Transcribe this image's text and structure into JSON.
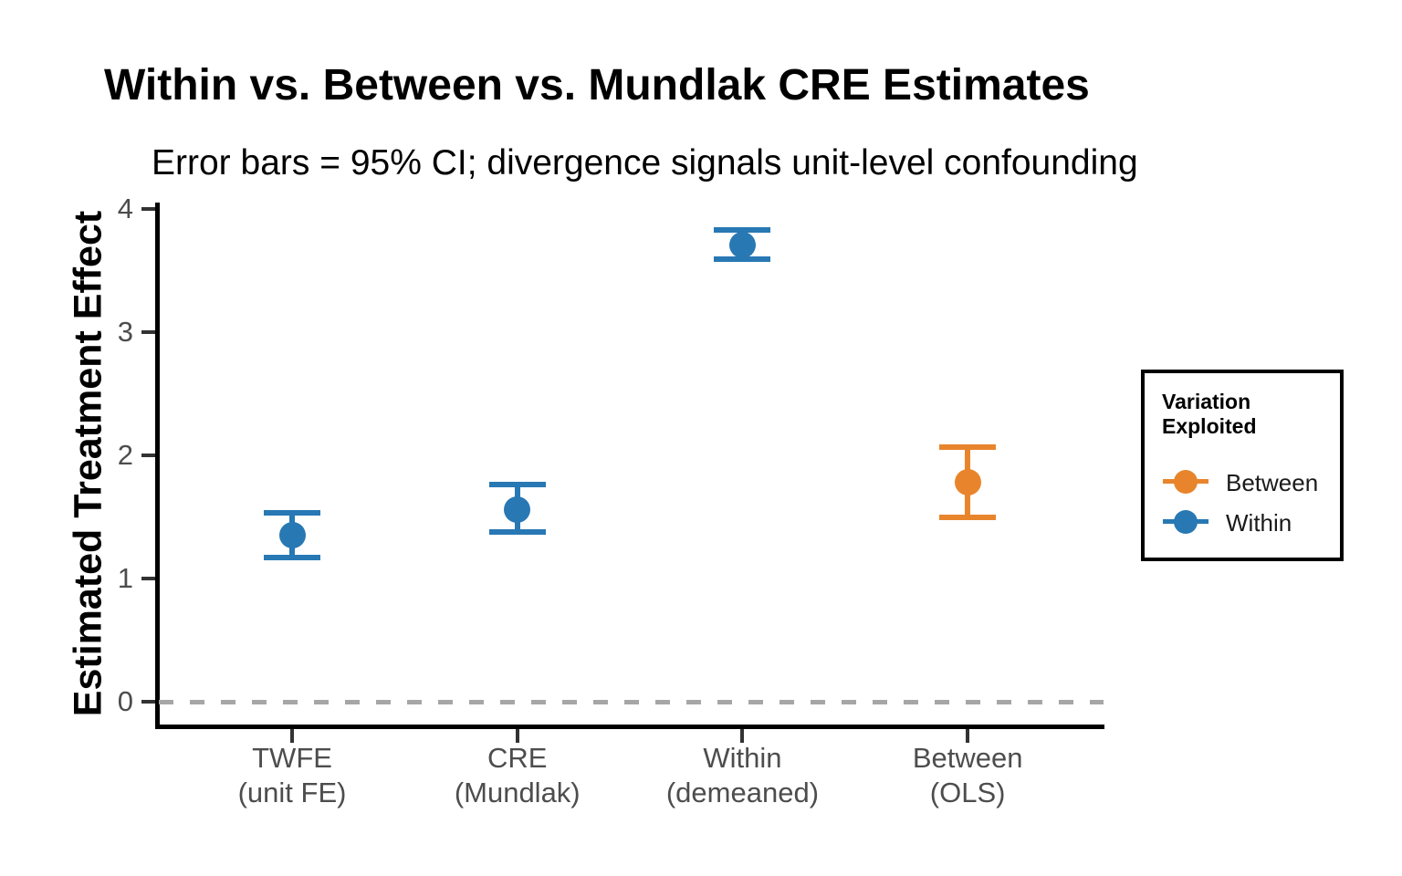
{
  "chart_data": {
    "type": "scatter",
    "title": "Within vs. Between vs. Mundlak CRE Estimates",
    "subtitle": "Error bars = 95% CI; divergence signals unit-level confounding",
    "ylabel": "Estimated Treatment Effect",
    "xlabel": "",
    "ylim": [
      -0.2,
      4.05
    ],
    "yticks": [
      0,
      1,
      2,
      3,
      4
    ],
    "grid": false,
    "zero_line": {
      "value": 0,
      "style": "dashed",
      "color": "#a6a6a6"
    },
    "categories": [
      [
        "TWFE",
        "(unit FE)"
      ],
      [
        "CRE",
        "(Mundlak)"
      ],
      [
        "Within",
        "(demeaned)"
      ],
      [
        "Between",
        "(OLS)"
      ]
    ],
    "points": [
      {
        "category": "TWFE (unit FE)",
        "estimate": 1.35,
        "ci_low": 1.17,
        "ci_high": 1.53,
        "group": "Within"
      },
      {
        "category": "CRE (Mundlak)",
        "estimate": 1.56,
        "ci_low": 1.38,
        "ci_high": 1.76,
        "group": "Within"
      },
      {
        "category": "Within (demeaned)",
        "estimate": 3.71,
        "ci_low": 3.59,
        "ci_high": 3.83,
        "group": "Within"
      },
      {
        "category": "Between (OLS)",
        "estimate": 1.78,
        "ci_low": 1.5,
        "ci_high": 2.07,
        "group": "Between"
      }
    ],
    "colors": {
      "Within": "#2878b4",
      "Between": "#e8852c"
    },
    "error_bars": "95% CI",
    "legend": {
      "title": "Variation Exploited",
      "position": "right",
      "entries": [
        {
          "label": "Between",
          "color": "#e8852c"
        },
        {
          "label": "Within",
          "color": "#2878b4"
        }
      ]
    }
  }
}
